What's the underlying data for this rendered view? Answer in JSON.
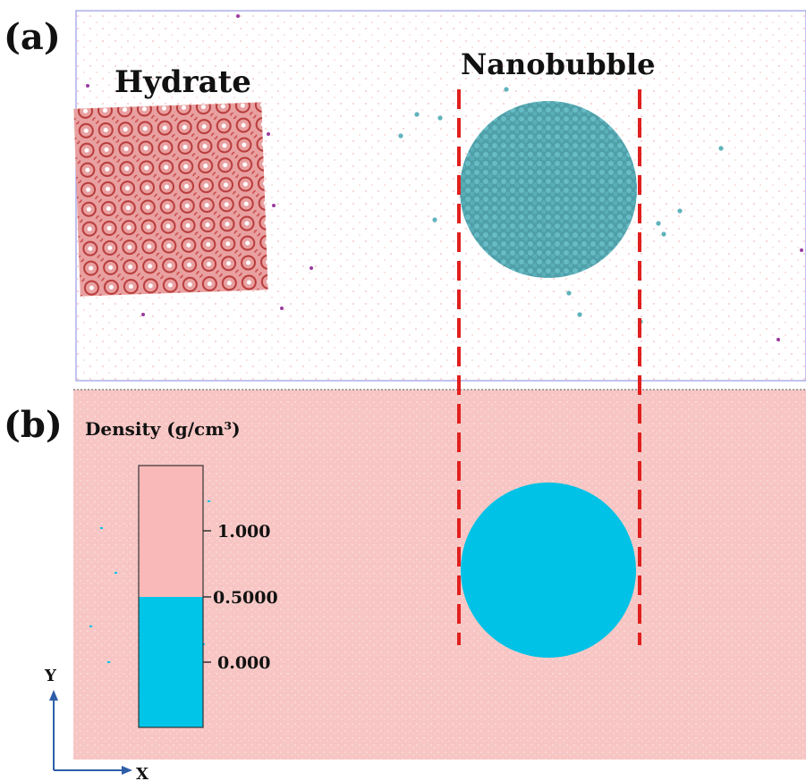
{
  "panels": {
    "a": {
      "label": "(a)",
      "hydrate_label": "Hydrate",
      "nanobubble_label": "Nanobubble"
    },
    "b": {
      "label": "(b)",
      "colorbar_title": "Density (g/cm³)",
      "colorbar_ticks": [
        "1.000",
        "0.5000",
        "0.000"
      ]
    }
  },
  "axes": {
    "y_label": "Y",
    "x_label": "X"
  },
  "colors": {
    "hydrate": "#c44a4a",
    "hydrate_guest": "#9a3aa0",
    "nanobubble": "#5fb3bd",
    "water_high_density": "#f7c6c4",
    "gas_low_density": "#00c2e6",
    "dashed_line": "#e0201e",
    "axis_arrow": "#2f5ea8"
  }
}
